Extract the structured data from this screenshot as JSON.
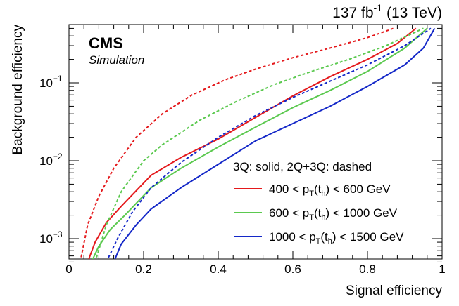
{
  "header": {
    "lumi": "137 fb",
    "lumi_exp": "-1",
    "energy": "(13 TeV)"
  },
  "labels": {
    "experiment": "CMS",
    "subtitle": "Simulation"
  },
  "chart_data": {
    "type": "line",
    "xlabel": "Signal efficiency",
    "ylabel": "Background efficiency",
    "xlim": [
      0,
      1
    ],
    "ylim": [
      0.0005,
      0.5
    ],
    "y_scale": "log",
    "grid": false,
    "legend_position": "right",
    "x_ticks": [
      "0",
      "0.2",
      "0.4",
      "0.6",
      "0.8",
      "1"
    ],
    "y_ticks": [
      {
        "base": "10",
        "exp": "−3",
        "value": 0.001
      },
      {
        "base": "10",
        "exp": "−2",
        "value": 0.01
      },
      {
        "base": "10",
        "exp": "−1",
        "value": 0.1
      }
    ],
    "legend_header": "3Q: solid, 2Q+3Q: dashed",
    "legend": [
      {
        "pre": "400 < p",
        "sub1": "T",
        "mid": "(t",
        "sub2": "h",
        "post": ") < 600 GeV",
        "color": "#e4191c"
      },
      {
        "pre": "600 < p",
        "sub1": "T",
        "mid": "(t",
        "sub2": "h",
        "post": ") < 1000 GeV",
        "color": "#5bc94f"
      },
      {
        "pre": "1000 < p",
        "sub1": "T",
        "mid": "(t",
        "sub2": "h",
        "post": ") < 1500 GeV",
        "color": "#1428c8"
      }
    ],
    "series": [
      {
        "style": "solid",
        "color": "#e4191c",
        "x": [
          0.05,
          0.07,
          0.1,
          0.14,
          0.22,
          0.3,
          0.4,
          0.5,
          0.6,
          0.7,
          0.8,
          0.88,
          0.93
        ],
        "y": [
          0.0005,
          0.0009,
          0.0016,
          0.0026,
          0.0065,
          0.011,
          0.019,
          0.036,
          0.068,
          0.12,
          0.2,
          0.32,
          0.5
        ]
      },
      {
        "style": "dashed",
        "color": "#e4191c",
        "x": [
          0.03,
          0.05,
          0.08,
          0.12,
          0.18,
          0.25,
          0.33,
          0.42,
          0.5,
          0.6,
          0.7,
          0.8,
          0.87
        ],
        "y": [
          0.0005,
          0.0015,
          0.0035,
          0.008,
          0.02,
          0.04,
          0.07,
          0.11,
          0.15,
          0.21,
          0.28,
          0.38,
          0.5
        ]
      },
      {
        "style": "solid",
        "color": "#5bc94f",
        "x": [
          0.06,
          0.08,
          0.11,
          0.15,
          0.22,
          0.3,
          0.4,
          0.5,
          0.6,
          0.7,
          0.8,
          0.9,
          0.96
        ],
        "y": [
          0.0005,
          0.0008,
          0.0013,
          0.002,
          0.0045,
          0.008,
          0.015,
          0.027,
          0.048,
          0.08,
          0.14,
          0.28,
          0.5
        ]
      },
      {
        "style": "dashed",
        "color": "#5bc94f",
        "x": [
          0.07,
          0.1,
          0.14,
          0.2,
          0.25,
          0.35,
          0.45,
          0.55,
          0.65,
          0.75,
          0.85,
          0.95
        ],
        "y": [
          0.0005,
          0.0015,
          0.004,
          0.01,
          0.016,
          0.033,
          0.058,
          0.095,
          0.14,
          0.2,
          0.3,
          0.5
        ]
      },
      {
        "style": "solid",
        "color": "#1428c8",
        "x": [
          0.12,
          0.14,
          0.18,
          0.22,
          0.3,
          0.4,
          0.5,
          0.6,
          0.7,
          0.8,
          0.9,
          0.95,
          0.98
        ],
        "y": [
          0.0005,
          0.00085,
          0.0015,
          0.0024,
          0.0045,
          0.009,
          0.018,
          0.03,
          0.05,
          0.09,
          0.17,
          0.28,
          0.5
        ]
      },
      {
        "style": "dashed",
        "color": "#1428c8",
        "x": [
          0.1,
          0.13,
          0.17,
          0.22,
          0.3,
          0.4,
          0.5,
          0.6,
          0.7,
          0.8,
          0.9,
          0.97
        ],
        "y": [
          0.0005,
          0.001,
          0.0022,
          0.0045,
          0.0095,
          0.02,
          0.038,
          0.065,
          0.105,
          0.17,
          0.3,
          0.5
        ]
      }
    ]
  }
}
